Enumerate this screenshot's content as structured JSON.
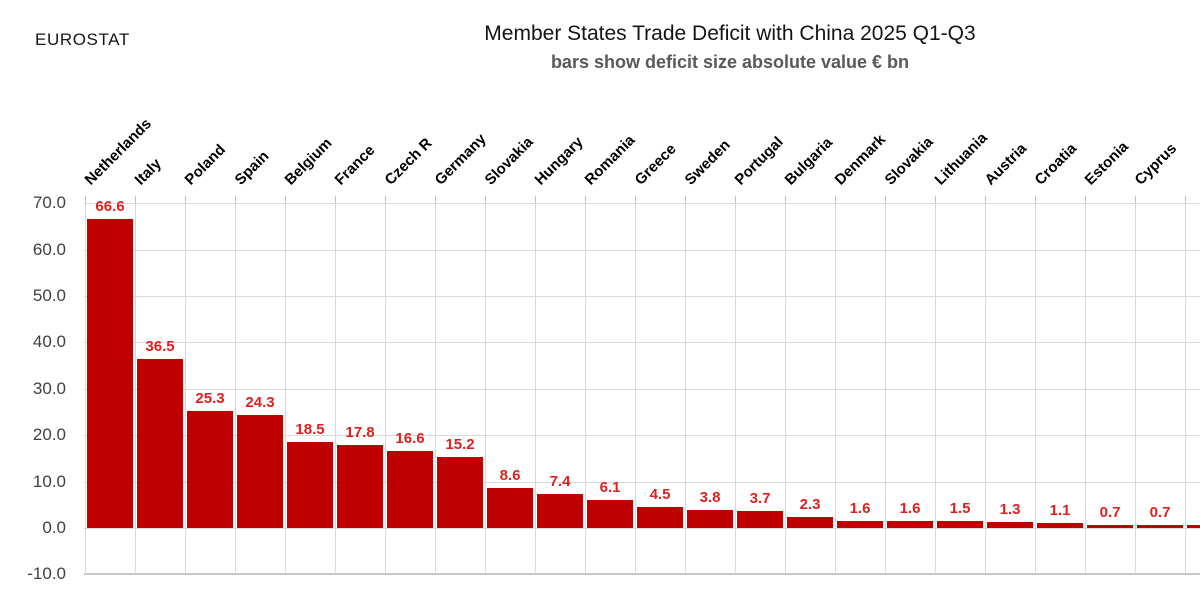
{
  "header": {
    "brand": "EUROSTAT"
  },
  "colors": {
    "bar": "#c00000",
    "value_label": "#e01f1f",
    "grid": "#d9d9d9",
    "baseline": "#c6c6c6",
    "axis_text": "#404040",
    "subtitle_text": "#595959",
    "category_text": "#000000"
  },
  "chart_data": {
    "type": "bar",
    "title": "Member States Trade Deficit with China 2025 Q1-Q3",
    "subtitle": "bars show deficit size absolute value € bn",
    "source_label": "EUROSTAT",
    "categories": [
      "Netherlands",
      "Italy",
      "Poland",
      "Spain",
      "Belgium",
      "France",
      "Czech R",
      "Germany",
      "Slovakia",
      "Hungary",
      "Romania",
      "Greece",
      "Sweden",
      "Portugal",
      "Bulgaria",
      "Denmark",
      "Slovakia",
      "Lithuania",
      "Austria",
      "Croatia",
      "Estonia",
      "Cyprus"
    ],
    "values": [
      66.6,
      36.5,
      25.3,
      24.3,
      18.5,
      17.8,
      16.6,
      15.2,
      8.6,
      7.4,
      6.1,
      4.5,
      3.8,
      3.7,
      2.3,
      1.6,
      1.6,
      1.5,
      1.3,
      1.1,
      0.7,
      0.7
    ],
    "ylim": [
      -10,
      70
    ],
    "ytick_labels": [
      "70.0",
      "60.0",
      "50.0",
      "40.0",
      "30.0",
      "20.0",
      "10.0",
      "0.0",
      "-10.0"
    ],
    "grid": true,
    "value_labels": "one decimal, red, above each bar",
    "category_label_rotation_deg": 45,
    "partial_last_bar": {
      "value_label_visible": "0",
      "note": "23rd bar cut off at right image edge; only a red sliver and leading 0 of its value label are visible"
    }
  }
}
